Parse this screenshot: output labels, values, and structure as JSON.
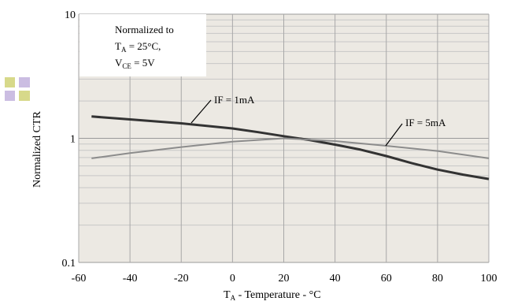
{
  "chart_data": {
    "type": "line",
    "xlabel": "T",
    "xlabel_sub": "A",
    "xlabel_rest": " - Temperature - °C",
    "ylabel": "Normalized CTR",
    "y_scale": "log",
    "xlim": [
      -60,
      100
    ],
    "ylim": [
      0.1,
      10
    ],
    "x_ticks": [
      -60,
      -40,
      -20,
      0,
      20,
      40,
      60,
      80,
      100
    ],
    "x_tick_labels": [
      "-60",
      "-40",
      "-20",
      "0",
      "20",
      "40",
      "60",
      "80",
      "100"
    ],
    "y_ticks": [
      0.1,
      1,
      10
    ],
    "y_tick_labels": [
      "0.1",
      "1",
      "10"
    ],
    "grid": true,
    "plot_background": "#ece9e3",
    "note": {
      "line1": "Normalized to",
      "line2_a": "T",
      "line2_sub": "A",
      "line2_b": " = 25°C,",
      "line3_a": "V",
      "line3_sub": "CE",
      "line3_b": " = 5V"
    },
    "series": [
      {
        "name": "IF = 1mA",
        "color": "#333333",
        "x": [
          -55,
          -40,
          -20,
          0,
          10,
          20,
          30,
          40,
          50,
          60,
          70,
          80,
          90,
          100
        ],
        "y": [
          1.5,
          1.42,
          1.32,
          1.2,
          1.12,
          1.04,
          0.97,
          0.89,
          0.81,
          0.72,
          0.63,
          0.56,
          0.51,
          0.47
        ]
      },
      {
        "name": "IF = 5mA",
        "color": "#8c8c8c",
        "x": [
          -55,
          -40,
          -20,
          0,
          20,
          40,
          60,
          80,
          100
        ],
        "y": [
          0.69,
          0.76,
          0.85,
          0.94,
          1.0,
          0.95,
          0.87,
          0.79,
          0.69
        ]
      }
    ]
  }
}
